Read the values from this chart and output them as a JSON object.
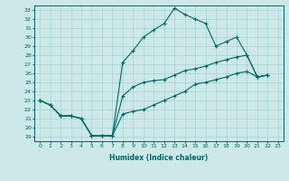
{
  "title": "",
  "xlabel": "Humidex (Indice chaleur)",
  "bg_color": "#cce8e8",
  "line_color": "#006666",
  "xlim": [
    -0.5,
    23.5
  ],
  "ylim": [
    18.5,
    33.5
  ],
  "xticks": [
    0,
    1,
    2,
    3,
    4,
    5,
    6,
    7,
    8,
    9,
    10,
    11,
    12,
    13,
    14,
    15,
    16,
    17,
    18,
    19,
    20,
    21,
    22,
    23
  ],
  "yticks": [
    19,
    20,
    21,
    22,
    23,
    24,
    25,
    26,
    27,
    28,
    29,
    30,
    31,
    32,
    33
  ],
  "series1_x": [
    0,
    1,
    2,
    3,
    4,
    5,
    6,
    7,
    8,
    9,
    10,
    11,
    12,
    13,
    14,
    15,
    16,
    17,
    18,
    19,
    20,
    21,
    22
  ],
  "series1_y": [
    23.0,
    22.5,
    21.3,
    21.3,
    21.0,
    19.1,
    19.1,
    19.1,
    27.2,
    28.5,
    30.0,
    30.8,
    31.5,
    33.2,
    32.5,
    32.0,
    31.5,
    29.0,
    29.5,
    30.0,
    28.0,
    25.6,
    25.8
  ],
  "series2_x": [
    0,
    1,
    2,
    3,
    4,
    5,
    6,
    7,
    8,
    9,
    10,
    11,
    12,
    13,
    14,
    15,
    16,
    17,
    18,
    19,
    20,
    21,
    22
  ],
  "series2_y": [
    23.0,
    22.5,
    21.3,
    21.3,
    21.0,
    19.1,
    19.1,
    19.1,
    23.5,
    24.5,
    25.0,
    25.2,
    25.3,
    25.8,
    26.3,
    26.5,
    26.8,
    27.2,
    27.5,
    27.8,
    28.0,
    25.6,
    25.8
  ],
  "series3_x": [
    0,
    1,
    2,
    3,
    4,
    5,
    6,
    7,
    8,
    9,
    10,
    11,
    12,
    13,
    14,
    15,
    16,
    17,
    18,
    19,
    20,
    21,
    22
  ],
  "series3_y": [
    23.0,
    22.5,
    21.3,
    21.3,
    21.0,
    19.1,
    19.1,
    19.1,
    21.5,
    21.8,
    22.0,
    22.5,
    23.0,
    23.5,
    24.0,
    24.8,
    25.0,
    25.3,
    25.6,
    26.0,
    26.2,
    25.6,
    25.8
  ]
}
